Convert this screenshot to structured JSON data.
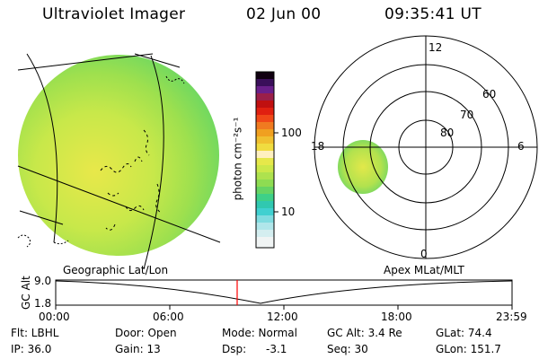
{
  "header": {
    "instrument": "Ultraviolet Imager",
    "date": "02 Jun 00",
    "time": "09:35:41 UT"
  },
  "colorbar": {
    "label": "photon cm⁻²s⁻¹",
    "ticks": [
      "100",
      "10"
    ],
    "scale": "log"
  },
  "polar_plot": {
    "mlt_labels": [
      "12",
      "18",
      "6",
      "0"
    ],
    "lat_labels": [
      "60",
      "70",
      "80"
    ],
    "title": "Apex MLat/MLT"
  },
  "geo_plot": {
    "title": "Geographic Lat/Lon"
  },
  "altitude_strip": {
    "ylabel": "GC Alt",
    "y_ticks": [
      "9.0",
      "1.8"
    ],
    "x_ticks": [
      "00:00",
      "06:00",
      "12:00",
      "18:00",
      "23:59"
    ],
    "marker_time": "09:35"
  },
  "info": {
    "flt": "Flt: LBHL",
    "ip": "IP: 36.0",
    "door": "Door: Open",
    "gain": "Gain: 13",
    "mode": "Mode: Normal",
    "dsp_label": "Dsp:",
    "dsp_value": "-3.1",
    "gc_alt": "GC Alt: 3.4 Re",
    "seq": "Seq: 30",
    "glat": "GLat: 74.4",
    "glon": "GLon: 151.7"
  }
}
